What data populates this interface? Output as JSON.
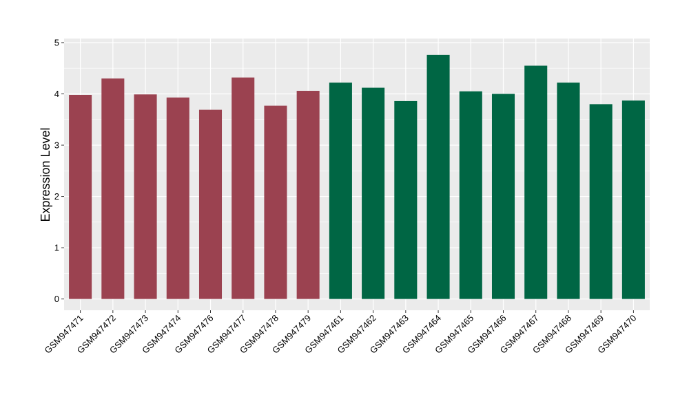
{
  "chart_data": {
    "type": "bar",
    "title": "",
    "xlabel": "",
    "ylabel": "Expression Level",
    "ylim": [
      -0.22,
      5.08
    ],
    "yticks": [
      0,
      1,
      2,
      3,
      4,
      5
    ],
    "grid": true,
    "categories": [
      "GSM947471",
      "GSM947472",
      "GSM947473",
      "GSM947474",
      "GSM947476",
      "GSM947477",
      "GSM947478",
      "GSM947479",
      "GSM947461",
      "GSM947462",
      "GSM947463",
      "GSM947464",
      "GSM947465",
      "GSM947466",
      "GSM947467",
      "GSM947468",
      "GSM947469",
      "GSM947470"
    ],
    "values": [
      3.98,
      4.3,
      3.99,
      3.93,
      3.69,
      4.32,
      3.77,
      4.06,
      4.22,
      4.12,
      3.86,
      4.76,
      4.05,
      4.0,
      4.55,
      4.22,
      3.8,
      3.87
    ],
    "bar_colors": [
      "#9b4250",
      "#9b4250",
      "#9b4250",
      "#9b4250",
      "#9b4250",
      "#9b4250",
      "#9b4250",
      "#9b4250",
      "#006644",
      "#006644",
      "#006644",
      "#006644",
      "#006644",
      "#006644",
      "#006644",
      "#006644",
      "#006644",
      "#006644"
    ],
    "panel_background": "#ebebeb",
    "grid_color": "#ffffff"
  }
}
